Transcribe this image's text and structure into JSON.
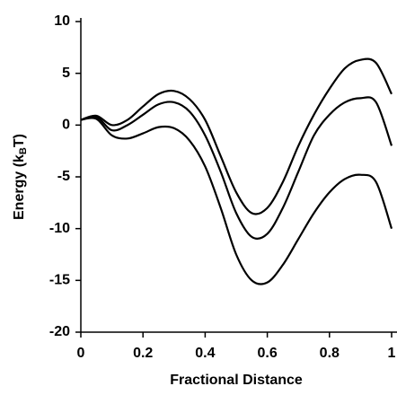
{
  "chart_data": {
    "type": "line",
    "xlabel": "Fractional Distance",
    "ylabel": [
      "Energy (k",
      "B",
      "T)"
    ],
    "x": [
      0,
      0.05,
      0.1,
      0.15,
      0.2,
      0.25,
      0.3,
      0.35,
      0.4,
      0.45,
      0.5,
      0.55,
      0.6,
      0.65,
      0.7,
      0.75,
      0.8,
      0.85,
      0.9,
      0.95,
      1
    ],
    "series": [
      {
        "color": "#000000",
        "values": [
          0.5,
          0.9,
          0.0,
          0.5,
          1.8,
          3.0,
          3.3,
          2.5,
          0.5,
          -3.0,
          -6.5,
          -8.5,
          -8.0,
          -5.5,
          -2.0,
          1.0,
          3.5,
          5.5,
          6.3,
          6.0,
          3.0
        ]
      },
      {
        "color": "#000000",
        "values": [
          0.5,
          0.8,
          -0.5,
          0.0,
          1.0,
          2.0,
          2.2,
          1.3,
          -1.0,
          -4.5,
          -8.5,
          -10.8,
          -10.5,
          -8.0,
          -4.5,
          -1.0,
          1.0,
          2.2,
          2.6,
          2.2,
          -2.0
        ]
      },
      {
        "color": "#000000",
        "values": [
          0.5,
          0.6,
          -1.0,
          -1.3,
          -0.8,
          -0.2,
          -0.3,
          -1.5,
          -4.0,
          -8.0,
          -12.5,
          -15.0,
          -15.2,
          -13.5,
          -11.0,
          -8.5,
          -6.5,
          -5.2,
          -4.8,
          -5.5,
          -10.0
        ]
      }
    ],
    "xlim": [
      0,
      1
    ],
    "xticks": [
      0,
      0.2,
      0.4,
      0.6,
      0.8,
      1
    ],
    "ylim": [
      -20,
      10
    ],
    "yticks": [
      -20,
      -15,
      -10,
      -5,
      0,
      5,
      10
    ],
    "grid": false
  }
}
